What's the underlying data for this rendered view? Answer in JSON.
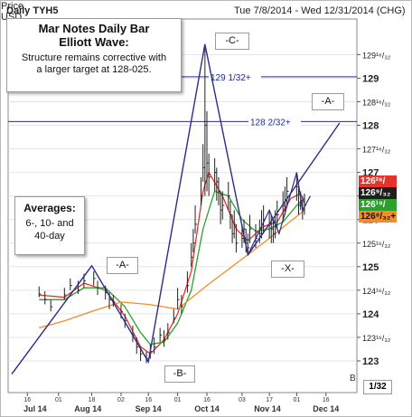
{
  "header": {
    "title": "Daily TYH5",
    "date_range": "Tue 7/8/2014 - Wed 12/31/2014 (CHG)",
    "price_label_line1": "Price",
    "price_label_line2": "USD"
  },
  "notes": {
    "main_title_line1": "Mar Notes Daily Bar",
    "main_title_line2": "Elliott Wave:",
    "main_body_line1": "Structure remains corrective with",
    "main_body_line2": "a larger target at 128-025.",
    "avg_title": "Averages:",
    "avg_line1": "6-, 10- and",
    "avg_line2": "40-day"
  },
  "wave_labels": {
    "a_first": "-A-",
    "b": "-B-",
    "c": "-C-",
    "x": "-X-",
    "a_second": "-A-"
  },
  "price_boxes": [
    {
      "text": "126²⁶/₃₂+",
      "color": "#e8332a"
    },
    {
      "text": "126⁹/₃₂",
      "color": "#1e1e1e"
    },
    {
      "text": "126¹⁹/₃₂+",
      "color": "#2ca02c"
    },
    {
      "text": "126⁸/₃₂+",
      "color": "#f28c28"
    }
  ],
  "footer": {
    "fraction": "1/32",
    "b_mark": "B"
  },
  "chart_data": {
    "type": "bar",
    "title": "Daily TYH5",
    "x_range": [
      "2014-07-08",
      "2014-12-31"
    ],
    "ylim": [
      122.75,
      130.0
    ],
    "y_ticks": [
      {
        "value": 123,
        "label": "123"
      },
      {
        "value": 123.5,
        "label": "123¹⁶/₃₂"
      },
      {
        "value": 124,
        "label": "124"
      },
      {
        "value": 124.5,
        "label": "124¹⁶/₃₂"
      },
      {
        "value": 125,
        "label": "125"
      },
      {
        "value": 125.5,
        "label": "125¹⁶/₃₂"
      },
      {
        "value": 126,
        "label": "126"
      },
      {
        "value": 126.5,
        "label": "126¹⁶/₃₂"
      },
      {
        "value": 127,
        "label": "127"
      },
      {
        "value": 127.5,
        "label": "127¹⁶/₃₂"
      },
      {
        "value": 128,
        "label": "128"
      },
      {
        "value": 128.5,
        "label": "128¹⁶/₃₂"
      },
      {
        "value": 129,
        "label": "129"
      },
      {
        "value": 129.5,
        "label": "129¹⁶/₃₂"
      }
    ],
    "x_day_ticks": [
      {
        "date": "2014-07-16",
        "label": "16"
      },
      {
        "date": "2014-08-01",
        "label": "01"
      },
      {
        "date": "2014-08-18",
        "label": "18"
      },
      {
        "date": "2014-09-02",
        "label": "02"
      },
      {
        "date": "2014-09-16",
        "label": "16"
      },
      {
        "date": "2014-10-01",
        "label": "01"
      },
      {
        "date": "2014-10-16",
        "label": "16"
      },
      {
        "date": "2014-11-03",
        "label": "03"
      },
      {
        "date": "2014-11-17",
        "label": "17"
      },
      {
        "date": "2014-12-01",
        "label": "01"
      },
      {
        "date": "2014-12-16",
        "label": "16"
      }
    ],
    "x_month_labels": [
      {
        "date": "2014-07-20",
        "label": "Jul 14"
      },
      {
        "date": "2014-08-16",
        "label": "Aug 14"
      },
      {
        "date": "2014-09-16",
        "label": "Sep 14"
      },
      {
        "date": "2014-10-16",
        "label": "Oct 14"
      },
      {
        "date": "2014-11-16",
        "label": "Nov 14"
      },
      {
        "date": "2014-12-16",
        "label": "Dec 14"
      }
    ],
    "h_lines": [
      {
        "value": 129.03,
        "label": "129 1/32+"
      },
      {
        "value": 128.08,
        "label": "128 2/32+"
      }
    ],
    "wave_path": [
      {
        "date": "2014-07-08",
        "value": 122.72
      },
      {
        "date": "2014-08-18",
        "value": 125.02
      },
      {
        "date": "2014-09-16",
        "value": 122.98
      },
      {
        "date": "2014-10-15",
        "value": 129.72
      },
      {
        "date": "2014-11-06",
        "value": 125.25
      },
      {
        "date": "2014-12-23",
        "value": 128.05
      }
    ],
    "wave_path2": [
      {
        "date": "2014-11-06",
        "value": 125.25
      },
      {
        "date": "2014-11-17",
        "value": 126.2
      },
      {
        "date": "2014-11-22",
        "value": 125.7
      },
      {
        "date": "2014-12-01",
        "value": 127.0
      },
      {
        "date": "2014-12-04",
        "value": 126.2
      },
      {
        "date": "2014-12-08",
        "value": 126.5
      }
    ],
    "bars": [
      [
        "2014-07-22",
        124.42,
        124.58,
        124.35
      ],
      [
        "2014-07-25",
        124.3,
        124.48,
        124.2
      ],
      [
        "2014-07-28",
        124.15,
        124.3,
        124.05
      ],
      [
        "2014-08-04",
        124.4,
        124.55,
        124.3
      ],
      [
        "2014-08-07",
        124.6,
        124.75,
        124.5
      ],
      [
        "2014-08-11",
        124.5,
        124.7,
        124.42
      ],
      [
        "2014-08-14",
        124.7,
        124.85,
        124.55
      ],
      [
        "2014-08-19",
        124.75,
        124.9,
        124.6
      ],
      [
        "2014-08-21",
        124.55,
        124.7,
        124.4
      ],
      [
        "2014-08-25",
        124.45,
        124.6,
        124.3
      ],
      [
        "2014-08-27",
        124.3,
        124.45,
        124.1
      ],
      [
        "2014-08-29",
        124.25,
        124.4,
        124.15
      ],
      [
        "2014-09-02",
        124.05,
        124.2,
        123.9
      ],
      [
        "2014-09-04",
        123.85,
        124.0,
        123.7
      ],
      [
        "2014-09-08",
        123.55,
        123.75,
        123.4
      ],
      [
        "2014-09-10",
        123.3,
        123.5,
        123.15
      ],
      [
        "2014-09-12",
        123.15,
        123.3,
        123.0
      ],
      [
        "2014-09-15",
        123.05,
        123.2,
        122.95
      ],
      [
        "2014-09-17",
        123.2,
        123.35,
        123.05
      ],
      [
        "2014-09-19",
        123.3,
        123.5,
        123.15
      ],
      [
        "2014-09-22",
        123.55,
        123.7,
        123.4
      ],
      [
        "2014-09-24",
        123.45,
        123.65,
        123.3
      ],
      [
        "2014-09-26",
        123.6,
        123.8,
        123.45
      ],
      [
        "2014-09-29",
        123.9,
        124.1,
        123.8
      ],
      [
        "2014-10-01",
        124.3,
        124.55,
        124.1
      ],
      [
        "2014-10-03",
        124.15,
        124.4,
        124.0
      ],
      [
        "2014-10-06",
        124.6,
        124.9,
        124.45
      ],
      [
        "2014-10-08",
        125.2,
        125.5,
        125.0
      ],
      [
        "2014-10-09",
        125.5,
        125.8,
        125.3
      ],
      [
        "2014-10-10",
        125.9,
        126.3,
        125.7
      ],
      [
        "2014-10-13",
        126.5,
        126.9,
        126.3
      ],
      [
        "2014-10-14",
        127.1,
        127.6,
        126.8
      ],
      [
        "2014-10-15",
        128.0,
        129.7,
        126.5
      ],
      [
        "2014-10-16",
        127.2,
        128.3,
        126.6
      ],
      [
        "2014-10-17",
        126.9,
        127.4,
        126.5
      ],
      [
        "2014-10-20",
        127.0,
        127.3,
        126.6
      ],
      [
        "2014-10-21",
        126.8,
        127.1,
        126.4
      ],
      [
        "2014-10-22",
        126.6,
        126.9,
        126.3
      ],
      [
        "2014-10-23",
        126.2,
        126.6,
        125.9
      ],
      [
        "2014-10-24",
        126.3,
        126.6,
        126.0
      ],
      [
        "2014-10-27",
        126.5,
        126.8,
        126.2
      ],
      [
        "2014-10-28",
        126.1,
        126.4,
        125.8
      ],
      [
        "2014-10-29",
        125.7,
        126.1,
        125.5
      ],
      [
        "2014-10-30",
        125.9,
        126.2,
        125.6
      ],
      [
        "2014-10-31",
        125.5,
        125.9,
        125.3
      ],
      [
        "2014-11-03",
        125.6,
        125.9,
        125.4
      ],
      [
        "2014-11-04",
        125.8,
        126.0,
        125.5
      ],
      [
        "2014-11-05",
        125.5,
        125.8,
        125.3
      ],
      [
        "2014-11-06",
        125.4,
        125.7,
        125.25
      ],
      [
        "2014-11-07",
        125.8,
        126.1,
        125.5
      ],
      [
        "2014-11-10",
        125.6,
        125.9,
        125.4
      ],
      [
        "2014-11-12",
        125.7,
        126.0,
        125.5
      ],
      [
        "2014-11-13",
        125.9,
        126.2,
        125.6
      ],
      [
        "2014-11-14",
        126.0,
        126.3,
        125.7
      ],
      [
        "2014-11-17",
        125.9,
        126.2,
        125.6
      ],
      [
        "2014-11-18",
        125.8,
        126.1,
        125.5
      ],
      [
        "2014-11-19",
        125.7,
        126.0,
        125.5
      ],
      [
        "2014-11-20",
        125.9,
        126.2,
        125.6
      ],
      [
        "2014-11-21",
        126.1,
        126.4,
        125.8
      ],
      [
        "2014-11-24",
        126.3,
        126.6,
        126.0
      ],
      [
        "2014-11-25",
        126.4,
        126.7,
        126.1
      ],
      [
        "2014-11-26",
        126.6,
        126.9,
        126.3
      ],
      [
        "2014-12-01",
        126.7,
        127.0,
        126.4
      ],
      [
        "2014-12-02",
        126.3,
        126.7,
        126.1
      ],
      [
        "2014-12-03",
        126.4,
        126.6,
        126.2
      ],
      [
        "2014-12-04",
        126.2,
        126.5,
        126.0
      ],
      [
        "2014-12-05",
        126.3,
        126.55,
        126.1
      ]
    ],
    "series": [
      {
        "name": "6-day",
        "color": "#e8332a",
        "points": [
          [
            "2014-07-22",
            124.4
          ],
          [
            "2014-08-04",
            124.35
          ],
          [
            "2014-08-14",
            124.65
          ],
          [
            "2014-08-25",
            124.5
          ],
          [
            "2014-09-04",
            123.95
          ],
          [
            "2014-09-12",
            123.3
          ],
          [
            "2014-09-17",
            123.15
          ],
          [
            "2014-09-24",
            123.45
          ],
          [
            "2014-10-01",
            124.0
          ],
          [
            "2014-10-08",
            124.9
          ],
          [
            "2014-10-14",
            126.6
          ],
          [
            "2014-10-17",
            127.0
          ],
          [
            "2014-10-24",
            126.5
          ],
          [
            "2014-10-31",
            125.8
          ],
          [
            "2014-11-06",
            125.55
          ],
          [
            "2014-11-14",
            125.85
          ],
          [
            "2014-11-21",
            125.95
          ],
          [
            "2014-11-28",
            126.45
          ],
          [
            "2014-12-03",
            126.55
          ],
          [
            "2014-12-05",
            126.35
          ]
        ]
      },
      {
        "name": "10-day",
        "color": "#2ca02c",
        "points": [
          [
            "2014-07-22",
            124.3
          ],
          [
            "2014-08-04",
            124.3
          ],
          [
            "2014-08-14",
            124.55
          ],
          [
            "2014-08-25",
            124.55
          ],
          [
            "2014-09-04",
            124.15
          ],
          [
            "2014-09-12",
            123.6
          ],
          [
            "2014-09-17",
            123.35
          ],
          [
            "2014-09-24",
            123.4
          ],
          [
            "2014-10-01",
            123.8
          ],
          [
            "2014-10-08",
            124.5
          ],
          [
            "2014-10-14",
            125.8
          ],
          [
            "2014-10-20",
            126.6
          ],
          [
            "2014-10-27",
            126.5
          ],
          [
            "2014-11-03",
            126.0
          ],
          [
            "2014-11-10",
            125.75
          ],
          [
            "2014-11-17",
            125.8
          ],
          [
            "2014-11-24",
            125.95
          ],
          [
            "2014-12-01",
            126.3
          ],
          [
            "2014-12-05",
            126.45
          ]
        ]
      },
      {
        "name": "40-day",
        "color": "#f28c28",
        "points": [
          [
            "2014-07-22",
            123.7
          ],
          [
            "2014-08-04",
            123.85
          ],
          [
            "2014-08-18",
            124.05
          ],
          [
            "2014-09-02",
            124.25
          ],
          [
            "2014-09-16",
            124.2
          ],
          [
            "2014-10-01",
            124.1
          ],
          [
            "2014-10-16",
            124.6
          ],
          [
            "2014-11-01",
            125.1
          ],
          [
            "2014-11-17",
            125.6
          ],
          [
            "2014-12-05",
            126.2
          ]
        ]
      }
    ]
  }
}
